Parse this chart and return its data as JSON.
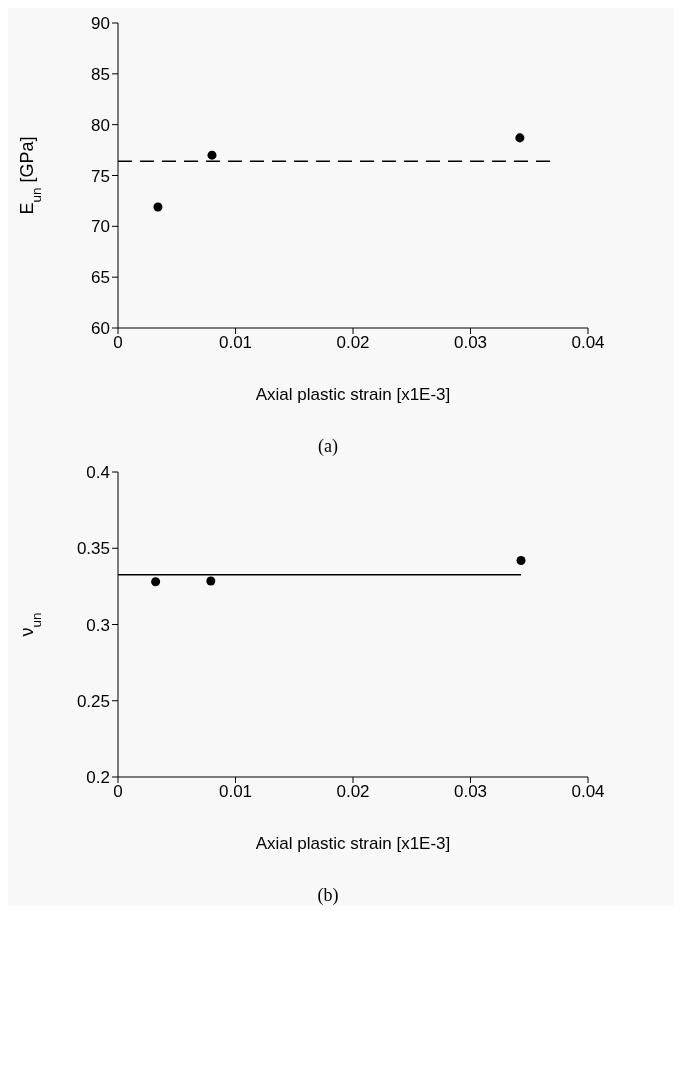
{
  "chart_data": [
    {
      "type": "scatter",
      "xlabel": "Axial plastic strain [x1E-3]",
      "ylabel": "E$_{un}$ [GPa]",
      "xlim": [
        0,
        0.04
      ],
      "xticks": [
        0,
        0.01,
        0.02,
        0.03,
        0.04
      ],
      "ylim": [
        60,
        90
      ],
      "yticks": [
        60,
        65,
        70,
        75,
        80,
        85,
        90
      ],
      "annotations": [
        "(a)"
      ],
      "series": [
        {
          "color": "#000000",
          "marker": "circle",
          "x": [
            0.0034,
            0.008,
            0.0342
          ],
          "values": [
            71.9,
            77.0,
            78.7
          ]
        },
        {
          "type": "line",
          "color": "#000000",
          "marker": "none",
          "line_style": "dashed",
          "x": [
            0,
            0.037
          ],
          "values": [
            76.4,
            76.4
          ]
        }
      ]
    },
    {
      "type": "scatter",
      "xlabel": "Axial plastic strain [x1E-3]",
      "ylabel": "ν$_{un}$",
      "xlim": [
        0,
        0.04
      ],
      "xticks": [
        0,
        0.01,
        0.02,
        0.03,
        0.04
      ],
      "ylim": [
        0.2,
        0.4
      ],
      "yticks": [
        0.2,
        0.25,
        0.3,
        0.35,
        0.4
      ],
      "annotations": [
        "(b)"
      ],
      "series": [
        {
          "color": "#000000",
          "marker": "circle",
          "x": [
            0.0032,
            0.0079,
            0.0343
          ],
          "values": [
            0.328,
            0.3285,
            0.342
          ]
        },
        {
          "type": "line",
          "color": "#000000",
          "marker": "none",
          "line_style": "solid",
          "x": [
            0,
            0.0343
          ],
          "values": [
            0.3326,
            0.3326
          ]
        }
      ]
    }
  ]
}
